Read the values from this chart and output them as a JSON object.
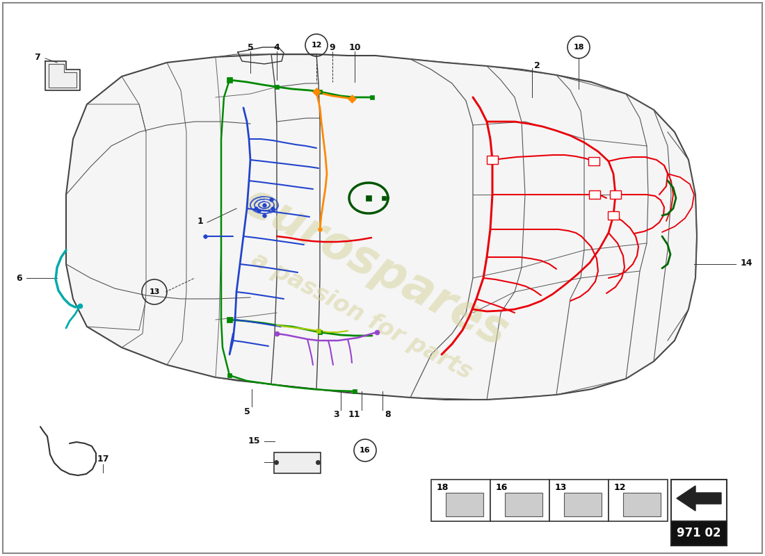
{
  "background_color": "#ffffff",
  "part_number": "971 02",
  "watermark_color": "#d8d4a0",
  "wiring": {
    "red": "#e8000a",
    "blue": "#2244cc",
    "green": "#008800",
    "orange": "#ff8800",
    "teal": "#00aaaa",
    "purple": "#9944cc",
    "yellow_green": "#aacc00",
    "dark_green": "#006600",
    "pink": "#cc44aa"
  },
  "label_color": "#111111",
  "line_color": "#333333",
  "car_fill": "#f5f5f5",
  "car_stroke": "#444444"
}
